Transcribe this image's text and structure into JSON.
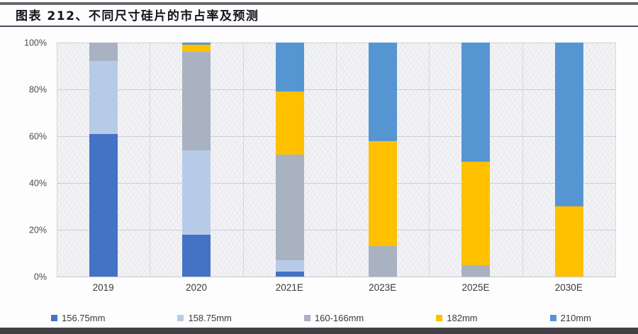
{
  "figure": {
    "title": "图表 212、不同尺寸硅片的市占率及预测"
  },
  "chart_data": {
    "type": "bar",
    "stacked": true,
    "percent_stacked": true,
    "title": "不同尺寸硅片的市占率及预测",
    "categories": [
      "2019",
      "2020",
      "2021E",
      "2023E",
      "2025E",
      "2030E"
    ],
    "series": [
      {
        "name": "156.75mm",
        "color": "#4472C4",
        "values": [
          61,
          18,
          2,
          0,
          0,
          0
        ]
      },
      {
        "name": "158.75mm",
        "color": "#B7CBE9",
        "values": [
          31,
          36,
          5,
          0,
          0,
          0
        ]
      },
      {
        "name": "160-166mm",
        "color": "#A8B2C1",
        "values": [
          8,
          42,
          45,
          13,
          5,
          0
        ]
      },
      {
        "name": "182mm",
        "color": "#FFC000",
        "values": [
          0,
          3,
          27,
          45,
          44,
          30
        ]
      },
      {
        "name": "210mm",
        "color": "#5596D2",
        "values": [
          0,
          1,
          21,
          42,
          51,
          70
        ]
      }
    ],
    "xlabel": "",
    "ylabel": "",
    "ylim": [
      0,
      100
    ],
    "yticks": [
      0,
      20,
      40,
      60,
      80,
      100
    ],
    "ytick_suffix": "%",
    "grid": true,
    "legend_position": "bottom"
  }
}
